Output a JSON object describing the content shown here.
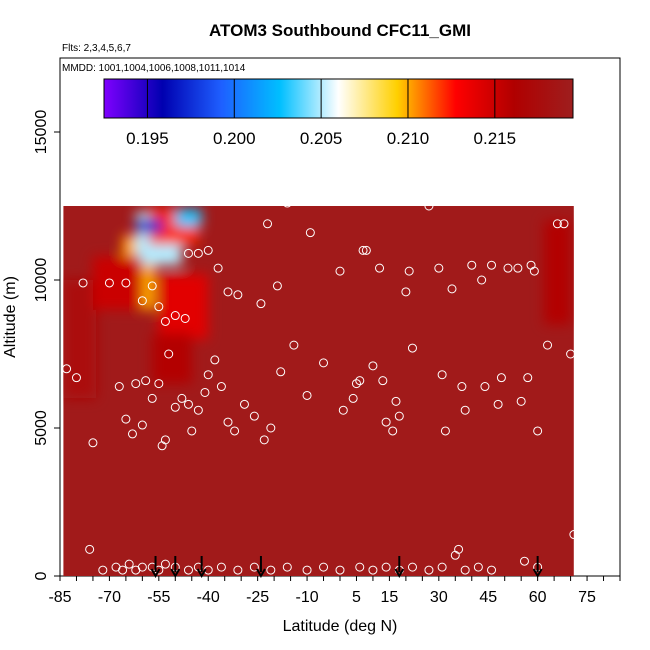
{
  "chart_data": {
    "type": "heatmap",
    "title": "ATOM3 Southbound CFC11_GMI",
    "flights_note": "Flts: 2,3,4,5,6,7",
    "dates_note": "MMDD: 1001,1004,1006,1008,1011,1014",
    "xlabel": "Latitude (deg N)",
    "ylabel": "Altitude (m)",
    "xlim": [
      -85,
      85
    ],
    "ylim": [
      0,
      17500
    ],
    "x_ticks": [
      -85,
      -70,
      -55,
      -40,
      -25,
      -10,
      5,
      15,
      30,
      45,
      60,
      75
    ],
    "y_ticks": [
      0,
      5000,
      10000,
      15000
    ],
    "colorbar": {
      "min": 0.1925,
      "max": 0.2195,
      "ticks": [
        0.195,
        0.2,
        0.205,
        0.21,
        0.215
      ],
      "tick_labels": [
        "0.195",
        "0.200",
        "0.205",
        "0.210",
        "0.215"
      ],
      "colors": [
        "#7f00ff",
        "#0000b0",
        "#1e5fff",
        "#00bfff",
        "#ffffff",
        "#ffd000",
        "#ff0000",
        "#b00000",
        "#9e1e1e"
      ]
    },
    "background_value": 0.219,
    "data_extent": {
      "lat": [
        -84,
        71
      ],
      "alt_max": 12500
    },
    "fields": [
      {
        "lat": [
          -66,
          -56
        ],
        "alt": [
          9000,
          11500
        ],
        "value": 0.21
      },
      {
        "lat": [
          -62,
          -48
        ],
        "alt": [
          10500,
          12300
        ],
        "value": 0.205
      },
      {
        "lat": [
          -58,
          -43
        ],
        "alt": [
          11200,
          12400
        ],
        "value": 0.212
      },
      {
        "lat": [
          -55,
          -40
        ],
        "alt": [
          8000,
          10200
        ],
        "value": 0.214
      },
      {
        "lat": [
          -57,
          -45
        ],
        "alt": [
          6500,
          8200
        ],
        "value": 0.216
      },
      {
        "lat": [
          -62,
          -54
        ],
        "alt": [
          11600,
          12050
        ],
        "value": 0.197
      },
      {
        "lat": [
          -50,
          -42
        ],
        "alt": [
          11800,
          12400
        ],
        "value": 0.203
      },
      {
        "lat": [
          62,
          70
        ],
        "alt": [
          8500,
          12000
        ],
        "value": 0.216
      },
      {
        "lat": [
          -84,
          -74
        ],
        "alt": [
          6000,
          10000
        ],
        "value": 0.217
      },
      {
        "lat": [
          -75,
          -60
        ],
        "alt": [
          9000,
          10800
        ],
        "value": 0.215
      }
    ],
    "flight_points": [
      [
        -83,
        7000
      ],
      [
        -80,
        6700
      ],
      [
        -78,
        9900
      ],
      [
        -75,
        4500
      ],
      [
        -70,
        9900
      ],
      [
        -67,
        6400
      ],
      [
        -65,
        5300
      ],
      [
        -63,
        4800
      ],
      [
        -62,
        6500
      ],
      [
        -59,
        6600
      ],
      [
        -60,
        5100
      ],
      [
        -57,
        6000
      ],
      [
        -55,
        6500
      ],
      [
        -54,
        4400
      ],
      [
        -53,
        4600
      ],
      [
        -52,
        7500
      ],
      [
        -50,
        5700
      ],
      [
        -48,
        6000
      ],
      [
        -46,
        5800
      ],
      [
        -45,
        4900
      ],
      [
        -43,
        5600
      ],
      [
        -41,
        6200
      ],
      [
        -40,
        6800
      ],
      [
        -38,
        7300
      ],
      [
        -36,
        6400
      ],
      [
        -34,
        5200
      ],
      [
        -32,
        4900
      ],
      [
        -29,
        5800
      ],
      [
        -26,
        5400
      ],
      [
        -23,
        4600
      ],
      [
        -21,
        5000
      ],
      [
        -18,
        6900
      ],
      [
        -65,
        9900
      ],
      [
        -60,
        9300
      ],
      [
        -57,
        9800
      ],
      [
        -55,
        9100
      ],
      [
        -53,
        8600
      ],
      [
        -50,
        8800
      ],
      [
        -47,
        8700
      ],
      [
        -46,
        10900
      ],
      [
        -43,
        10900
      ],
      [
        -40,
        11000
      ],
      [
        -37,
        10400
      ],
      [
        -34,
        9600
      ],
      [
        -31,
        9500
      ],
      [
        -24,
        9200
      ],
      [
        -19,
        9800
      ],
      [
        -22,
        11900
      ],
      [
        -16,
        12600
      ],
      [
        -9,
        11600
      ],
      [
        -14,
        7800
      ],
      [
        -10,
        6100
      ],
      [
        -5,
        7200
      ],
      [
        0,
        10300
      ],
      [
        1,
        5600
      ],
      [
        4,
        6000
      ],
      [
        5,
        6500
      ],
      [
        6,
        6600
      ],
      [
        7,
        11000
      ],
      [
        8,
        11000
      ],
      [
        10,
        7100
      ],
      [
        12,
        10400
      ],
      [
        13,
        6600
      ],
      [
        14,
        5200
      ],
      [
        16,
        4900
      ],
      [
        17,
        5900
      ],
      [
        18,
        5400
      ],
      [
        20,
        9600
      ],
      [
        21,
        10300
      ],
      [
        22,
        7700
      ],
      [
        27,
        12500
      ],
      [
        30,
        10400
      ],
      [
        31,
        6800
      ],
      [
        32,
        4900
      ],
      [
        34,
        9700
      ],
      [
        37,
        6400
      ],
      [
        38,
        5600
      ],
      [
        40,
        10500
      ],
      [
        43,
        10000
      ],
      [
        44,
        6400
      ],
      [
        46,
        10500
      ],
      [
        48,
        5800
      ],
      [
        49,
        6700
      ],
      [
        51,
        10400
      ],
      [
        54,
        10400
      ],
      [
        55,
        5900
      ],
      [
        57,
        6700
      ],
      [
        58,
        10500
      ],
      [
        59,
        10300
      ],
      [
        60,
        4900
      ],
      [
        63,
        7800
      ],
      [
        66,
        11900
      ],
      [
        68,
        11900
      ],
      [
        70,
        7500
      ],
      [
        71,
        1400
      ],
      [
        -76,
        900
      ],
      [
        -72,
        200
      ],
      [
        -68,
        300
      ],
      [
        -66,
        200
      ],
      [
        -64,
        400
      ],
      [
        -62,
        200
      ],
      [
        -60,
        300
      ],
      [
        -57,
        300
      ],
      [
        -55,
        200
      ],
      [
        -53,
        400
      ],
      [
        -50,
        300
      ],
      [
        -46,
        200
      ],
      [
        -43,
        300
      ],
      [
        -40,
        200
      ],
      [
        -36,
        300
      ],
      [
        -31,
        200
      ],
      [
        -26,
        300
      ],
      [
        -21,
        200
      ],
      [
        -16,
        300
      ],
      [
        -10,
        200
      ],
      [
        -5,
        300
      ],
      [
        0,
        200
      ],
      [
        6,
        300
      ],
      [
        10,
        200
      ],
      [
        14,
        300
      ],
      [
        18,
        200
      ],
      [
        22,
        300
      ],
      [
        27,
        200
      ],
      [
        31,
        300
      ],
      [
        35,
        700
      ],
      [
        36,
        900
      ],
      [
        38,
        200
      ],
      [
        42,
        300
      ],
      [
        46,
        200
      ],
      [
        56,
        500
      ],
      [
        60,
        300
      ]
    ],
    "markers": [
      -56,
      -50,
      -42,
      -24,
      18,
      60
    ],
    "grid": false,
    "legend": "colorbar top"
  }
}
